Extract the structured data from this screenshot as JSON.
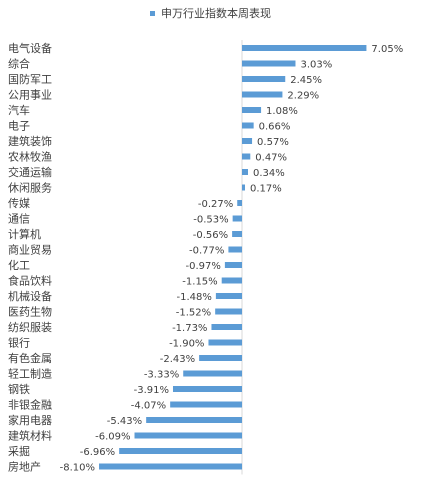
{
  "chart_data": {
    "type": "bar",
    "orientation": "horizontal",
    "legend": {
      "label": "申万行业指数本周表现",
      "position": "top"
    },
    "series": [
      {
        "name": "申万行业指数本周表现",
        "color": "#5b9bd5"
      }
    ],
    "grid": false,
    "categories": [
      "电气设备",
      "综合",
      "国防军工",
      "公用事业",
      "汽车",
      "电子",
      "建筑装饰",
      "农林牧渔",
      "交通运输",
      "休闲服务",
      "传媒",
      "通信",
      "计算机",
      "商业贸易",
      "化工",
      "食品饮料",
      "机械设备",
      "医药生物",
      "纺织服装",
      "银行",
      "有色金属",
      "轻工制造",
      "钢铁",
      "非银金融",
      "家用电器",
      "建筑材料",
      "采掘",
      "房地产"
    ],
    "values": [
      7.05,
      3.03,
      2.45,
      2.29,
      1.08,
      0.66,
      0.57,
      0.47,
      0.34,
      0.17,
      -0.27,
      -0.53,
      -0.56,
      -0.77,
      -0.97,
      -1.15,
      -1.48,
      -1.52,
      -1.73,
      -1.9,
      -2.43,
      -3.33,
      -3.91,
      -4.07,
      -5.43,
      -6.09,
      -6.96,
      -8.1
    ],
    "data_labels": [
      "7.05%",
      "3.03%",
      "2.45%",
      "2.29%",
      "1.08%",
      "0.66%",
      "0.57%",
      "0.47%",
      "0.34%",
      "0.17%",
      "-0.27%",
      "-0.53%",
      "-0.56%",
      "-0.77%",
      "-0.97%",
      "-1.15%",
      "-1.48%",
      "-1.52%",
      "-1.73%",
      "-1.90%",
      "-2.43%",
      "-3.33%",
      "-3.91%",
      "-4.07%",
      "-5.43%",
      "-6.09%",
      "-6.96%",
      "-8.10%"
    ],
    "value_unit": "%"
  }
}
